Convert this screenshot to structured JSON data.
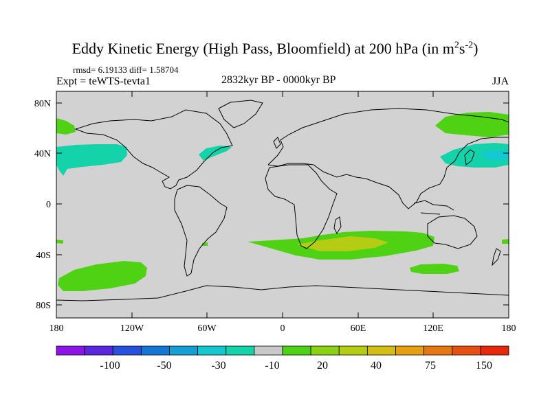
{
  "header": {
    "title_main": "Eddy Kinetic Energy (High Pass, Bloomfield) at 200 hPa (in m",
    "title_sup1": "2",
    "title_mid": "s",
    "title_sup2": "-2",
    "title_end": ")",
    "stats": "rmsd= 6.19133 diff= 1.58704",
    "experiment": "Expt = teWTS-tevta1",
    "period": "2832kyr BP - 0000kyr BP",
    "season": "JJA"
  },
  "map": {
    "lat_labels": [
      "80N",
      "40N",
      "0",
      "40S",
      "80S"
    ],
    "lon_labels": [
      "180",
      "120W",
      "60W",
      "0",
      "60E",
      "120E",
      "180"
    ],
    "ocean_color": "#d2d2d2",
    "coast_color": "#000000"
  },
  "colorbar": {
    "colors": [
      "#8c14e6",
      "#5a28dc",
      "#2850dc",
      "#1478d2",
      "#14a0d2",
      "#14c8d2",
      "#14d2aa",
      "#c8c8c8",
      "#50d214",
      "#8cd214",
      "#b4cd14",
      "#d2be14",
      "#e6a014",
      "#e67814",
      "#e65014",
      "#e6280f"
    ],
    "labels": [
      "-100",
      "-50",
      "-30",
      "-10",
      "20",
      "40",
      "75",
      "150"
    ]
  }
}
